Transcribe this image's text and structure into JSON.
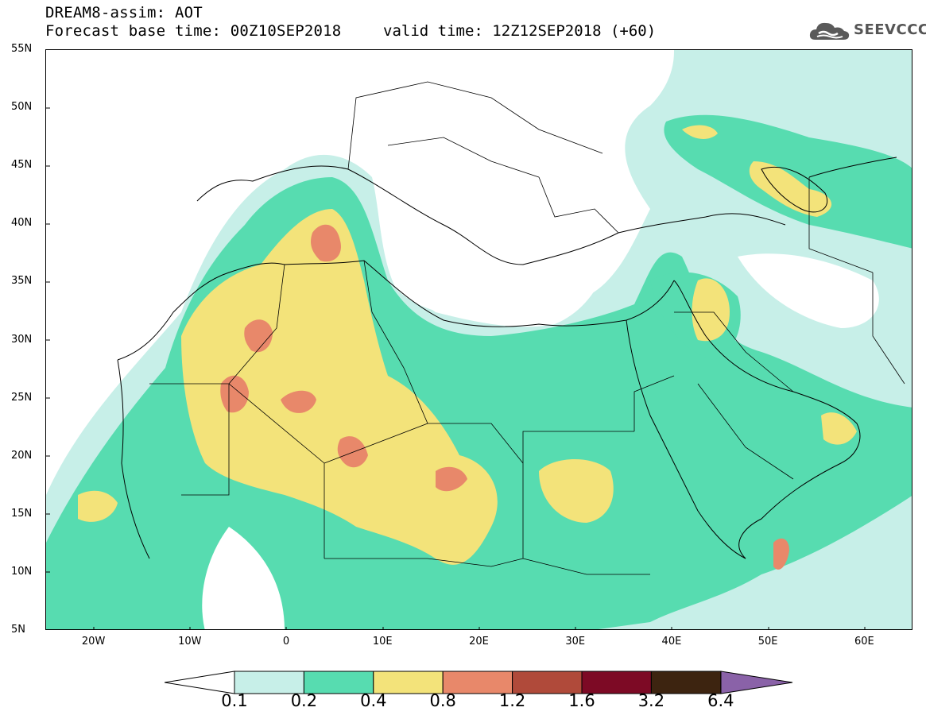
{
  "header": {
    "line1": "DREAM8-assim: AOT",
    "line2": "Forecast base time: 00Z10SEP2018",
    "valid": "valid time: 12Z12SEP2018 (+60)"
  },
  "logo": {
    "text": "SEEVCCC",
    "icon": "cloud-icon"
  },
  "map": {
    "lat_labels": [
      "55N",
      "50N",
      "45N",
      "40N",
      "35N",
      "30N",
      "25N",
      "20N",
      "15N",
      "10N",
      "5N"
    ],
    "lon_labels": [
      "20W",
      "10W",
      "0",
      "10E",
      "20E",
      "30E",
      "40E",
      "50E",
      "60E"
    ],
    "lat_range": [
      5,
      55
    ],
    "lon_range": [
      -25,
      65
    ],
    "field": "AOT",
    "fill_colors": {
      "0.1-0.2": "#c7efe8",
      "0.2-0.4": "#57dcb0",
      "0.4-0.8": "#f3e37a",
      "0.8-1.2": "#e8886a",
      "1.2-1.6": "#b04a3a",
      "1.6-3.2": "#7d0a25",
      "3.2-6.4": "#3d2410",
      ">6.4": "#8a62a8"
    }
  },
  "colorbar": {
    "labels": [
      "0.1",
      "0.2",
      "0.4",
      "0.8",
      "1.2",
      "1.6",
      "3.2",
      "6.4"
    ],
    "colors": [
      "#c7efe8",
      "#57dcb0",
      "#f3e37a",
      "#e8886a",
      "#b04a3a",
      "#7d0a25",
      "#3d2410"
    ],
    "over_color": "#8a62a8",
    "under_color": "#ffffff"
  }
}
